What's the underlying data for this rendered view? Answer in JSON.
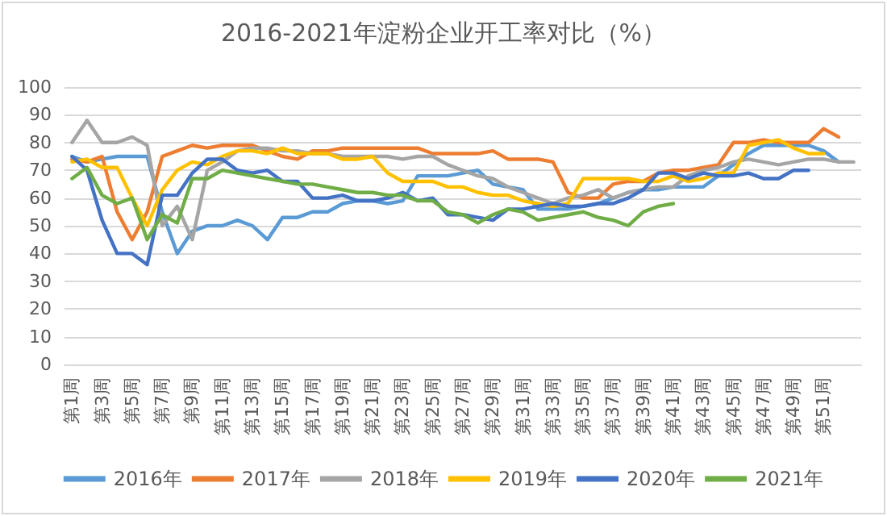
{
  "chart_data": {
    "type": "line",
    "title": "2016-2021年淀粉企业开工率对比（%）",
    "categories": [
      "第1周",
      null,
      "第3周",
      null,
      "第5周",
      null,
      "第7周",
      null,
      "第9周",
      null,
      "第11周",
      null,
      "第13周",
      null,
      "第15周",
      null,
      "第17周",
      null,
      "第19周",
      null,
      "第21周",
      null,
      "第23周",
      null,
      "第25周",
      null,
      "第27周",
      null,
      "第29周",
      null,
      "第31周",
      null,
      "第33周",
      null,
      "第35周",
      null,
      "第37周",
      null,
      "第39周",
      null,
      "第41周",
      null,
      "第43周",
      null,
      "第45周",
      null,
      "第47周",
      null,
      "第49周",
      null,
      "第51周",
      null,
      null
    ],
    "series": [
      {
        "name": "2016年",
        "color": "#5b9bd5",
        "values": [
          75,
          73,
          74,
          75,
          75,
          75,
          55,
          40,
          48,
          50,
          50,
          52,
          50,
          45,
          53,
          53,
          55,
          55,
          58,
          59,
          59,
          58,
          59,
          68,
          68,
          68,
          69,
          70,
          65,
          64,
          63,
          56,
          56,
          56,
          57,
          58,
          60,
          62,
          63,
          63,
          64,
          64,
          64,
          68,
          72,
          76,
          79,
          79,
          79,
          79,
          77,
          73,
          null
        ]
      },
      {
        "name": "2017年",
        "color": "#ed7d31",
        "values": [
          74,
          73,
          75,
          55,
          45,
          55,
          75,
          77,
          79,
          78,
          79,
          79,
          79,
          77,
          75,
          74,
          77,
          77,
          78,
          78,
          78,
          78,
          78,
          78,
          76,
          76,
          76,
          76,
          77,
          74,
          74,
          74,
          73,
          62,
          60,
          60,
          65,
          66,
          66,
          69,
          70,
          70,
          71,
          72,
          80,
          80,
          81,
          80,
          80,
          80,
          85,
          82,
          null
        ]
      },
      {
        "name": "2018年",
        "color": "#a5a5a5",
        "values": [
          80,
          88,
          80,
          80,
          82,
          79,
          50,
          57,
          45,
          70,
          73,
          77,
          78,
          78,
          77,
          77,
          76,
          76,
          75,
          75,
          75,
          75,
          74,
          75,
          75,
          72,
          70,
          68,
          67,
          64,
          62,
          60,
          58,
          60,
          61,
          63,
          60,
          62,
          63,
          64,
          64,
          68,
          70,
          71,
          73,
          74,
          73,
          72,
          73,
          74,
          74,
          73,
          73
        ]
      },
      {
        "name": "2019年",
        "color": "#ffc000",
        "values": [
          73,
          74,
          71,
          71,
          60,
          50,
          63,
          70,
          73,
          72,
          75,
          77,
          77,
          76,
          78,
          76,
          76,
          76,
          74,
          74,
          75,
          69,
          66,
          66,
          66,
          64,
          64,
          62,
          61,
          61,
          59,
          58,
          57,
          58,
          67,
          67,
          67,
          67,
          66,
          66,
          68,
          66,
          67,
          69,
          69,
          79,
          80,
          81,
          78,
          76,
          76,
          null,
          null
        ]
      },
      {
        "name": "2020年",
        "color": "#4472c4",
        "values": [
          75,
          70,
          52,
          40,
          40,
          36,
          61,
          61,
          69,
          74,
          74,
          70,
          69,
          70,
          66,
          66,
          60,
          60,
          61,
          59,
          59,
          60,
          62,
          59,
          60,
          54,
          54,
          53,
          52,
          56,
          56,
          57,
          58,
          57,
          57,
          58,
          58,
          60,
          63,
          69,
          69,
          67,
          69,
          68,
          68,
          69,
          67,
          67,
          70,
          70,
          null,
          null,
          null
        ]
      },
      {
        "name": "2021年",
        "color": "#70ad47",
        "values": [
          67,
          71,
          61,
          58,
          60,
          45,
          54,
          51,
          67,
          67,
          70,
          69,
          68,
          67,
          66,
          65,
          65,
          64,
          63,
          62,
          62,
          61,
          61,
          59,
          59,
          55,
          54,
          51,
          54,
          56,
          55,
          52,
          53,
          54,
          55,
          53,
          52,
          50,
          55,
          57,
          58,
          null,
          null,
          null,
          null,
          null,
          null,
          null,
          null,
          null,
          null,
          null,
          null
        ]
      }
    ],
    "ylim": [
      0,
      100
    ],
    "yticks": [
      0,
      10,
      20,
      30,
      40,
      50,
      60,
      70,
      80,
      90,
      100
    ],
    "grid": "y",
    "legend": "bottom",
    "marker": "none",
    "line_style": "solid"
  }
}
